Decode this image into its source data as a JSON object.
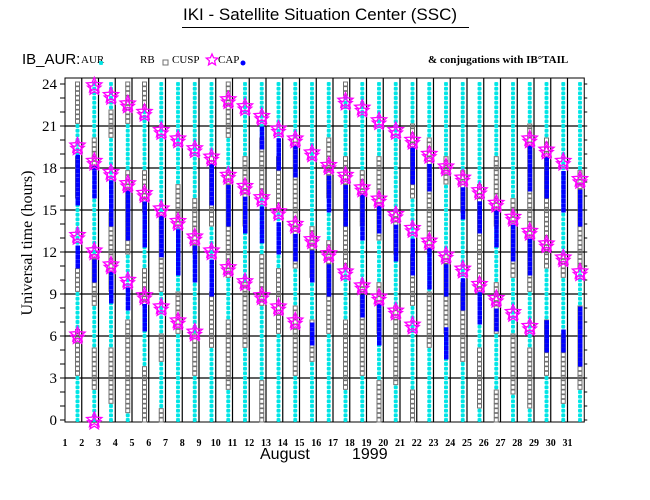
{
  "header": {
    "title": "IKI - Satellite Situation Center (SSC)",
    "series_label": "IB_AUR:",
    "conjugations": "& conjugations with IB°TAIL"
  },
  "colors": {
    "aur": "#00e5e5",
    "rb": "#707070",
    "cusp": "#ff00ff",
    "cap": "#0000ff",
    "grid": "#000000"
  },
  "chart_data": {
    "type": "scatter",
    "title": "IKI - Satellite Situation Center (SSC)",
    "ylabel": "Universal time (hours)",
    "xlabel_month": "August",
    "xlabel_year": "1999",
    "ylim": [
      0,
      24
    ],
    "yticks": [
      "0",
      "3",
      "6",
      "9",
      "12",
      "15",
      "18",
      "21",
      "24"
    ],
    "xticks": [
      "1",
      "2",
      "3",
      "4",
      "5",
      "6",
      "7",
      "8",
      "9",
      "10",
      "11",
      "12",
      "13",
      "14",
      "15",
      "16",
      "17",
      "18",
      "19",
      "20",
      "21",
      "22",
      "23",
      "24",
      "25",
      "26",
      "27",
      "28",
      "29",
      "30",
      "31"
    ],
    "grid": true,
    "legend": {
      "position": "top-left",
      "entries": [
        {
          "label": "AUR",
          "marker": "asterisk"
        },
        {
          "label": "RB",
          "marker": "square"
        },
        {
          "label": "CUSP",
          "marker": "star"
        },
        {
          "label": "CAP",
          "marker": "dot"
        }
      ]
    },
    "days": [
      {
        "day": 1,
        "cusp": [
          19.6,
          13.2,
          6.1
        ],
        "cap": [
          [
            15.5,
            18.8
          ],
          [
            11,
            12.6
          ]
        ],
        "aur": [
          [
            0,
            3
          ],
          [
            6.5,
            9
          ],
          [
            11,
            16
          ],
          [
            19,
            21
          ]
        ]
      },
      {
        "day": 2,
        "cusp": [
          23.9,
          18.5,
          12.1,
          0
        ],
        "cap": [
          [
            16,
            18
          ],
          [
            10,
            11.5
          ]
        ],
        "aur": [
          [
            0,
            2
          ],
          [
            5,
            8
          ],
          [
            12,
            18
          ],
          [
            20,
            24
          ]
        ]
      },
      {
        "day": 3,
        "cusp": [
          23.2,
          17.7,
          11.1
        ],
        "cap": [
          [
            14,
            17.2
          ],
          [
            8.5,
            10.5
          ]
        ],
        "aur": [
          [
            0,
            1
          ],
          [
            5,
            9
          ],
          [
            15,
            20
          ],
          [
            22,
            24
          ]
        ]
      },
      {
        "day": 4,
        "cusp": [
          22.6,
          16.9,
          10
        ],
        "cap": [
          [
            13,
            16.3
          ],
          [
            8,
            9.5
          ]
        ],
        "aur": [
          [
            0,
            0.5
          ],
          [
            7,
            12
          ],
          [
            18,
            21
          ]
        ]
      },
      {
        "day": 5,
        "cusp": [
          22,
          16.2,
          8.9
        ],
        "cap": [
          [
            12.5,
            15.6
          ],
          [
            6.5,
            8.3
          ]
        ],
        "aur": [
          [
            4,
            8
          ],
          [
            11,
            15
          ],
          [
            18,
            22
          ]
        ]
      },
      {
        "day": 6,
        "cusp": [
          20.7,
          15.1,
          8.1
        ],
        "cap": [
          [
            11.8,
            14.5
          ]
        ],
        "aur": [
          [
            1,
            4
          ],
          [
            6,
            9
          ],
          [
            15,
            24
          ]
        ]
      },
      {
        "day": 7,
        "cusp": [
          20.1,
          14.2,
          7.1
        ],
        "cap": [
          [
            10.5,
            13.6
          ]
        ],
        "aur": [
          [
            0,
            6
          ],
          [
            9,
            14
          ],
          [
            17,
            24
          ]
        ]
      },
      {
        "day": 8,
        "cusp": [
          19.4,
          13.1,
          6.3
        ],
        "cap": [
          [
            10,
            12.5
          ]
        ],
        "aur": [
          [
            0,
            3
          ],
          [
            6,
            12
          ],
          [
            16,
            24
          ]
        ]
      },
      {
        "day": 9,
        "cusp": [
          18.8,
          12.1
        ],
        "cap": [
          [
            9,
            11.5
          ],
          [
            15.5,
            18.2
          ]
        ],
        "aur": [
          [
            0,
            5
          ],
          [
            9,
            14
          ],
          [
            19,
            24
          ]
        ]
      },
      {
        "day": 10,
        "cusp": [
          22.9,
          17.5,
          10.9
        ],
        "cap": [
          [
            14,
            16.9
          ]
        ],
        "aur": [
          [
            0,
            2
          ],
          [
            7,
            10
          ],
          [
            18,
            20
          ]
        ]
      },
      {
        "day": 11,
        "cusp": [
          22.4,
          16.7,
          9.9
        ],
        "cap": [
          [
            13.5,
            16.1
          ]
        ],
        "aur": [
          [
            0,
            5
          ],
          [
            10,
            14
          ],
          [
            19,
            24
          ]
        ]
      },
      {
        "day": 12,
        "cusp": [
          21.7,
          15.9,
          8.9
        ],
        "cap": [
          [
            12.8,
            15.3
          ],
          [
            19.5,
            21.1
          ]
        ],
        "aur": [
          [
            3,
            8
          ],
          [
            12,
            16
          ],
          [
            20,
            24
          ]
        ]
      },
      {
        "day": 13,
        "cusp": [
          20.8,
          14.9,
          8.1
        ],
        "cap": [
          [
            12,
            14.3
          ],
          [
            18,
            20.2
          ]
        ],
        "aur": [
          [
            0,
            6
          ],
          [
            11,
            15
          ],
          [
            19,
            24
          ]
        ]
      },
      {
        "day": 14,
        "cusp": [
          20.1,
          14,
          7.1
        ],
        "cap": [
          [
            11.5,
            13.4
          ],
          [
            17.5,
            19.5
          ]
        ],
        "aur": [
          [
            0,
            3
          ],
          [
            8,
            11
          ],
          [
            20,
            24
          ]
        ]
      },
      {
        "day": 15,
        "cusp": [
          19.1,
          12.9
        ],
        "cap": [
          [
            10,
            12.3
          ],
          [
            5.5,
            7
          ]
        ],
        "aur": [
          [
            0,
            4
          ],
          [
            7,
            10
          ],
          [
            14,
            24
          ]
        ]
      },
      {
        "day": 16,
        "cusp": [
          18.2,
          11.9
        ],
        "cap": [
          [
            9,
            11.3
          ],
          [
            15,
            17.6
          ]
        ],
        "aur": [
          [
            0,
            6
          ],
          [
            13,
            16
          ],
          [
            20,
            24
          ]
        ]
      },
      {
        "day": 17,
        "cusp": [
          22.8,
          17.5,
          10.6
        ],
        "cap": [
          [
            14,
            16.9
          ]
        ],
        "aur": [
          [
            0,
            2
          ],
          [
            7,
            11
          ],
          [
            19,
            23
          ]
        ]
      },
      {
        "day": 18,
        "cusp": [
          22.3,
          16.6,
          9.6
        ],
        "cap": [
          [
            13,
            16
          ],
          [
            7.5,
            9
          ]
        ],
        "aur": [
          [
            0,
            3
          ],
          [
            10,
            14
          ],
          [
            18,
            24
          ]
        ]
      },
      {
        "day": 19,
        "cusp": [
          21.4,
          15.8,
          8.8
        ],
        "cap": [
          [
            13.5,
            15.2
          ],
          [
            5.5,
            8.2
          ]
        ],
        "aur": [
          [
            3,
            6
          ],
          [
            10,
            13
          ],
          [
            19,
            24
          ]
        ]
      },
      {
        "day": 20,
        "cusp": [
          20.7,
          14.7,
          7.8
        ],
        "cap": [
          [
            11.5,
            14.1
          ]
        ],
        "aur": [
          [
            0,
            2.5
          ],
          [
            8,
            12
          ],
          [
            15,
            24
          ]
        ]
      },
      {
        "day": 21,
        "cusp": [
          20,
          13.7,
          6.8
        ],
        "cap": [
          [
            10.5,
            13.1
          ],
          [
            17,
            19.4
          ]
        ],
        "aur": [
          [
            2,
            8
          ],
          [
            12,
            16
          ],
          [
            21,
            24
          ]
        ]
      },
      {
        "day": 22,
        "cusp": [
          19,
          12.8
        ],
        "cap": [
          [
            9.5,
            12.2
          ],
          [
            16.5,
            18.4
          ]
        ],
        "aur": [
          [
            0,
            5
          ],
          [
            9,
            12
          ],
          [
            20,
            24
          ]
        ]
      },
      {
        "day": 23,
        "cusp": [
          18.1,
          11.8
        ],
        "cap": [
          [
            9,
            11.2
          ],
          [
            4.5,
            6.5
          ]
        ],
        "aur": [
          [
            0,
            6
          ],
          [
            12,
            17
          ],
          [
            19,
            24
          ]
        ]
      },
      {
        "day": 24,
        "cusp": [
          17.3,
          10.8
        ],
        "cap": [
          [
            8,
            10.2
          ],
          [
            14.5,
            16.7
          ]
        ],
        "aur": [
          [
            0,
            4
          ],
          [
            10,
            15
          ],
          [
            18,
            24
          ]
        ]
      },
      {
        "day": 25,
        "cusp": [
          16.4,
          9.7
        ],
        "cap": [
          [
            7,
            9.1
          ],
          [
            13.5,
            15.8
          ]
        ],
        "aur": [
          [
            0,
            0.8
          ],
          [
            5,
            9
          ],
          [
            17,
            24
          ]
        ]
      },
      {
        "day": 26,
        "cusp": [
          15.5,
          8.7
        ],
        "cap": [
          [
            6.5,
            8.1
          ],
          [
            12.5,
            14.9
          ]
        ],
        "aur": [
          [
            2,
            6
          ],
          [
            10,
            14
          ],
          [
            19,
            24
          ]
        ]
      },
      {
        "day": 27,
        "cusp": [
          14.5,
          7.7
        ],
        "cap": [
          [
            11.5,
            13.9
          ]
        ],
        "aur": [
          [
            0,
            1.8
          ],
          [
            6,
            10
          ],
          [
            16,
            24
          ]
        ]
      },
      {
        "day": 28,
        "cusp": [
          20.1,
          13.5,
          6.7
        ],
        "cap": [
          [
            16.5,
            19.5
          ],
          [
            10.5,
            12.9
          ]
        ],
        "aur": [
          [
            0,
            0.8
          ],
          [
            5,
            9
          ],
          [
            21,
            24
          ]
        ]
      },
      {
        "day": 29,
        "cusp": [
          19.3,
          12.6
        ],
        "cap": [
          [
            16,
            18.7
          ],
          [
            5,
            7
          ]
        ],
        "aur": [
          [
            0,
            3
          ],
          [
            7,
            11
          ],
          [
            20,
            24
          ]
        ]
      },
      {
        "day": 30,
        "cusp": [
          18.5,
          11.6
        ],
        "cap": [
          [
            15,
            17.9
          ],
          [
            5,
            6.5
          ]
        ],
        "aur": [
          [
            0,
            1
          ],
          [
            6,
            10
          ],
          [
            12,
            24
          ]
        ]
      },
      {
        "day": 31,
        "cusp": [
          17.2,
          10.6
        ],
        "cap": [
          [
            14,
            16.6
          ],
          [
            4,
            8
          ]
        ],
        "aur": [
          [
            0,
            2
          ],
          [
            8,
            11
          ],
          [
            18,
            24
          ]
        ]
      }
    ]
  }
}
